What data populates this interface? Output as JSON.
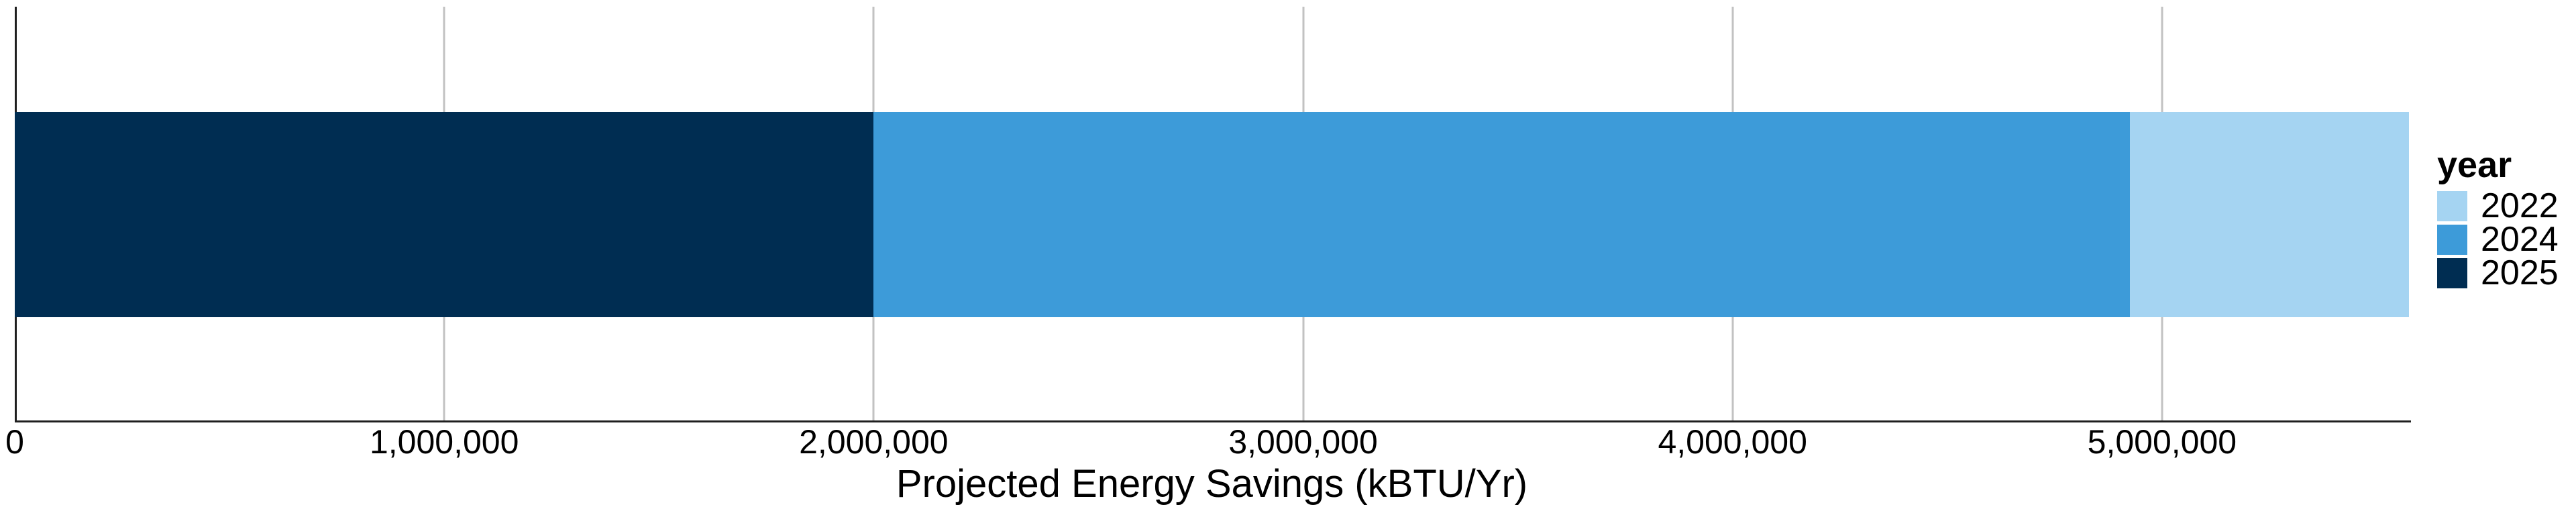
{
  "chart_data": {
    "type": "bar",
    "orientation": "horizontal",
    "stacked": true,
    "title": "",
    "xlabel": "Projected Energy Savings (kBTU/Yr)",
    "ylabel": "",
    "xlim": [
      0,
      5575000
    ],
    "x_ticks": [
      0,
      1000000,
      2000000,
      3000000,
      4000000,
      5000000
    ],
    "x_tick_labels": [
      "0",
      "1,000,000",
      "2,000,000",
      "3,000,000",
      "4,000,000",
      "5,000,000"
    ],
    "grid": "vertical-major-only",
    "total": 5575000,
    "series": [
      {
        "name": "2025",
        "value": 2000000,
        "color": "#002d52"
      },
      {
        "name": "2024",
        "value": 2925000,
        "color": "#3d9bd9"
      },
      {
        "name": "2022",
        "value": 650000,
        "color": "#a5d4f2"
      }
    ],
    "legend": {
      "title": "year",
      "position": "right",
      "labels": [
        "2022",
        "2024",
        "2025"
      ]
    },
    "colors": {
      "gridline": "#c2c2c2",
      "axis_line": "#1f1f1f",
      "background": "#ffffff",
      "text": "#000000"
    }
  }
}
